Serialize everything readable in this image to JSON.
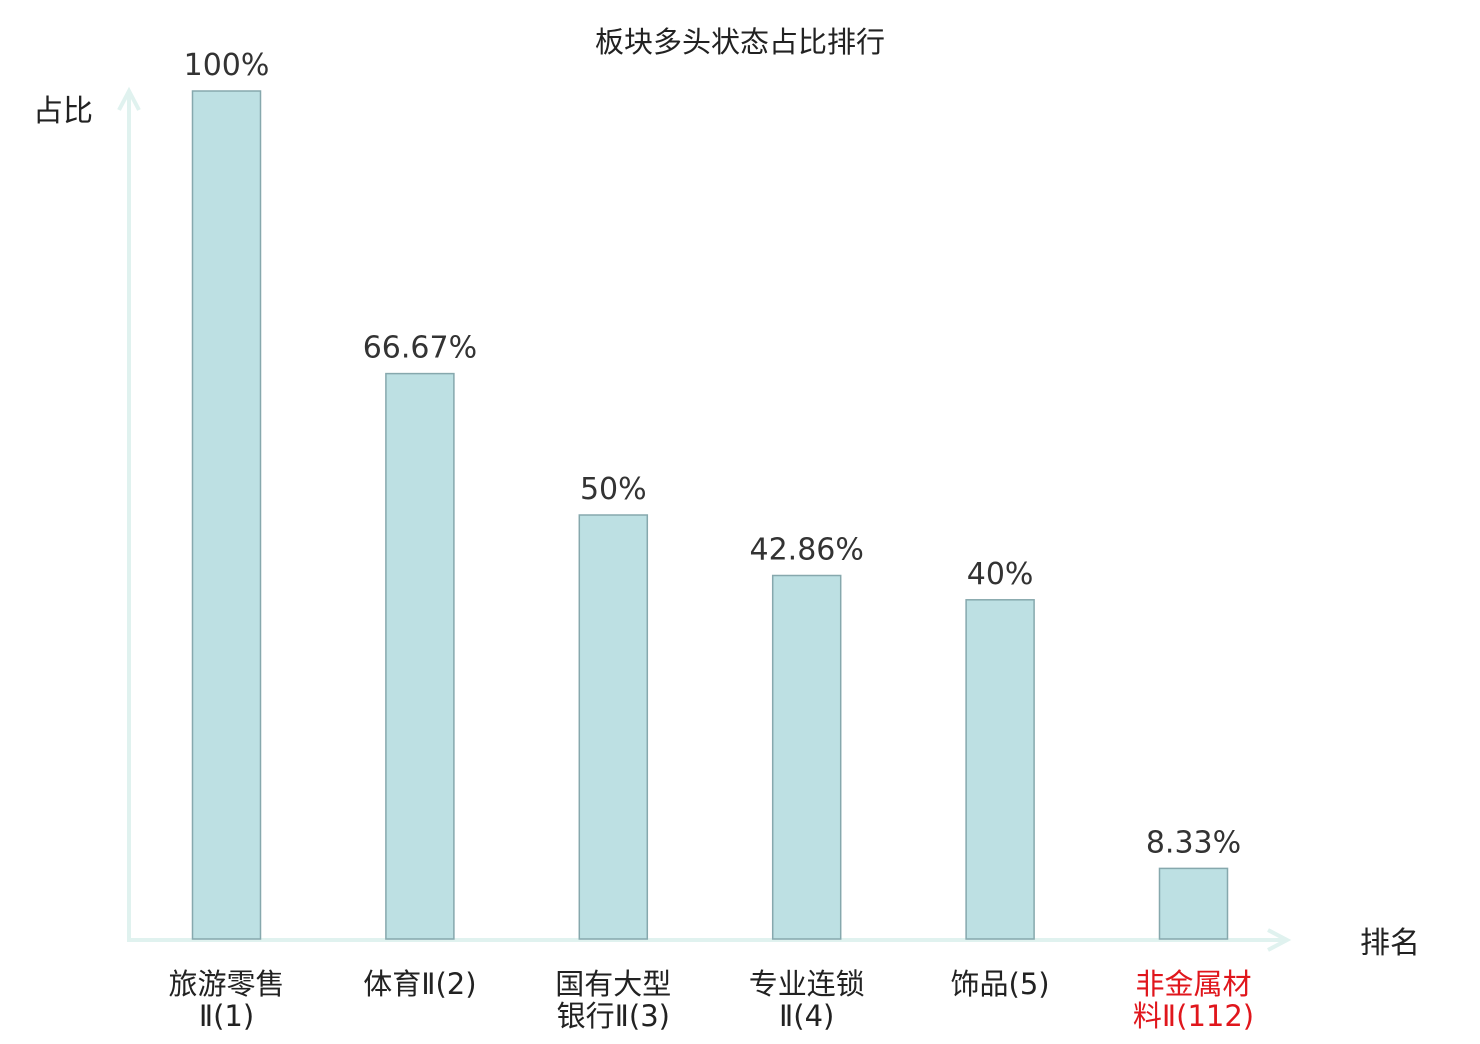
{
  "chart_data": {
    "type": "bar",
    "title": "板块多头状态占比排行",
    "ylabel": "占比",
    "xlabel": "排名",
    "ylim": [
      0,
      100
    ],
    "grid": false,
    "legend": "none",
    "categories": [
      {
        "lines": [
          "旅游零售",
          "Ⅱ(1)"
        ],
        "highlight": false
      },
      {
        "lines": [
          "体育Ⅱ(2)"
        ],
        "highlight": false
      },
      {
        "lines": [
          "国有大型",
          "银行Ⅱ(3)"
        ],
        "highlight": false
      },
      {
        "lines": [
          "专业连锁",
          "Ⅱ(4)"
        ],
        "highlight": false
      },
      {
        "lines": [
          "饰品(5)"
        ],
        "highlight": false
      },
      {
        "lines": [
          "非金属材",
          "料Ⅱ(112)"
        ],
        "highlight": true
      }
    ],
    "values": [
      100,
      66.67,
      50,
      42.86,
      40,
      8.33
    ],
    "value_labels": [
      "100%",
      "66.67%",
      "50%",
      "42.86%",
      "40%",
      "8.33%"
    ],
    "colors": {
      "bar_fill": "#bde0e3",
      "bar_stroke": "#86a8ad",
      "axis": "#e0f2ef",
      "text": "#222222",
      "value_text": "#333333",
      "highlight_text": "#e0161c",
      "secondary_text": "#444444"
    }
  }
}
